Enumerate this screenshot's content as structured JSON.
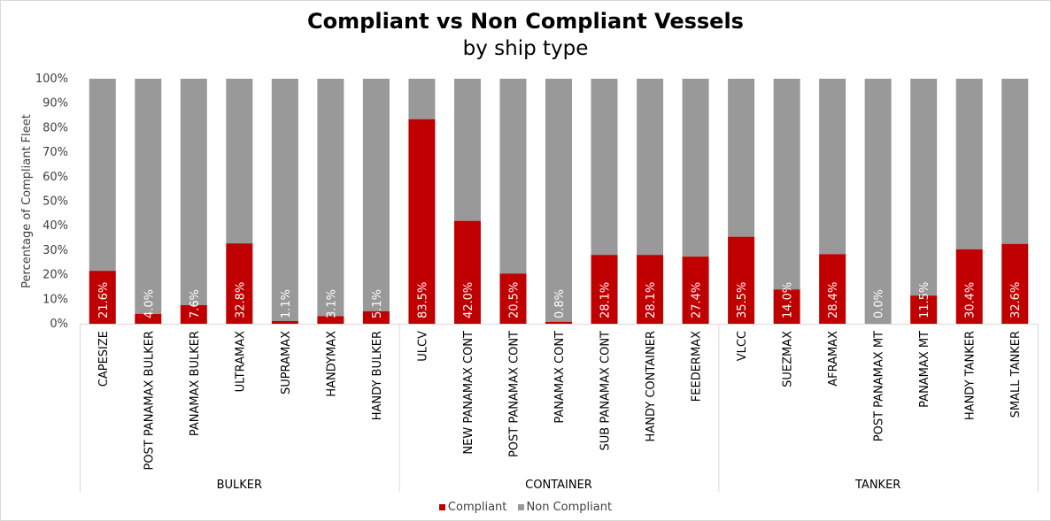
{
  "chart_data": {
    "type": "bar",
    "stacked": "percent",
    "title": "Compliant vs Non Compliant Vessels",
    "subtitle": "by ship type",
    "ylabel": "Percentage of Compliant Fleet",
    "ylim": [
      0,
      100
    ],
    "yticks": [
      "0%",
      "10%",
      "20%",
      "30%",
      "40%",
      "50%",
      "60%",
      "70%",
      "80%",
      "90%",
      "100%"
    ],
    "groups": [
      {
        "name": "BULKER",
        "categories": [
          "CAPESIZE",
          "POST PANAMAX BULKER",
          "PANAMAX BULKER",
          "ULTRAMAX",
          "SUPRAMAX",
          "HANDYMAX",
          "HANDY BULKER"
        ]
      },
      {
        "name": "CONTAINER",
        "categories": [
          "ULCV",
          "NEW PANAMAX CONT",
          "POST PANAMAX CONT",
          "PANAMAX CONT",
          "SUB PANAMAX CONT",
          "HANDY CONTAINER",
          "FEEDERMAX"
        ]
      },
      {
        "name": "TANKER",
        "categories": [
          "VLCC",
          "SUEZMAX",
          "AFRAMAX",
          "POST PANAMAX MT",
          "PANAMAX MT",
          "HANDY TANKER",
          "SMALL TANKER"
        ]
      }
    ],
    "categories": [
      "CAPESIZE",
      "POST PANAMAX BULKER",
      "PANAMAX BULKER",
      "ULTRAMAX",
      "SUPRAMAX",
      "HANDYMAX",
      "HANDY BULKER",
      "ULCV",
      "NEW PANAMAX CONT",
      "POST PANAMAX CONT",
      "PANAMAX CONT",
      "SUB PANAMAX CONT",
      "HANDY CONTAINER",
      "FEEDERMAX",
      "VLCC",
      "SUEZMAX",
      "AFRAMAX",
      "POST PANAMAX MT",
      "PANAMAX MT",
      "HANDY TANKER",
      "SMALL TANKER"
    ],
    "series": [
      {
        "name": "Compliant",
        "color": "#c00000",
        "values": [
          21.6,
          4.0,
          7.6,
          32.8,
          1.1,
          3.1,
          5.1,
          83.5,
          42.0,
          20.5,
          0.8,
          28.1,
          28.1,
          27.4,
          35.5,
          14.0,
          28.4,
          0.0,
          11.5,
          30.4,
          32.6
        ],
        "labels": [
          "21.6%",
          "4.0%",
          "7.6%",
          "32.8%",
          "1.1%",
          "3.1%",
          "5.1%",
          "83.5%",
          "42.0%",
          "20.5%",
          "0.8%",
          "28.1%",
          "28.1%",
          "27.4%",
          "35.5%",
          "14.0%",
          "28.4%",
          "0.0%",
          "11.5%",
          "30.4%",
          "32.6%"
        ]
      },
      {
        "name": "Non Compliant",
        "color": "#999999",
        "values": [
          78.4,
          96.0,
          92.4,
          67.2,
          98.9,
          96.9,
          94.9,
          16.5,
          58.0,
          79.5,
          99.2,
          71.9,
          71.9,
          72.6,
          64.5,
          86.0,
          71.6,
          100.0,
          88.5,
          69.6,
          67.4
        ]
      }
    ],
    "legend_position": "bottom"
  }
}
